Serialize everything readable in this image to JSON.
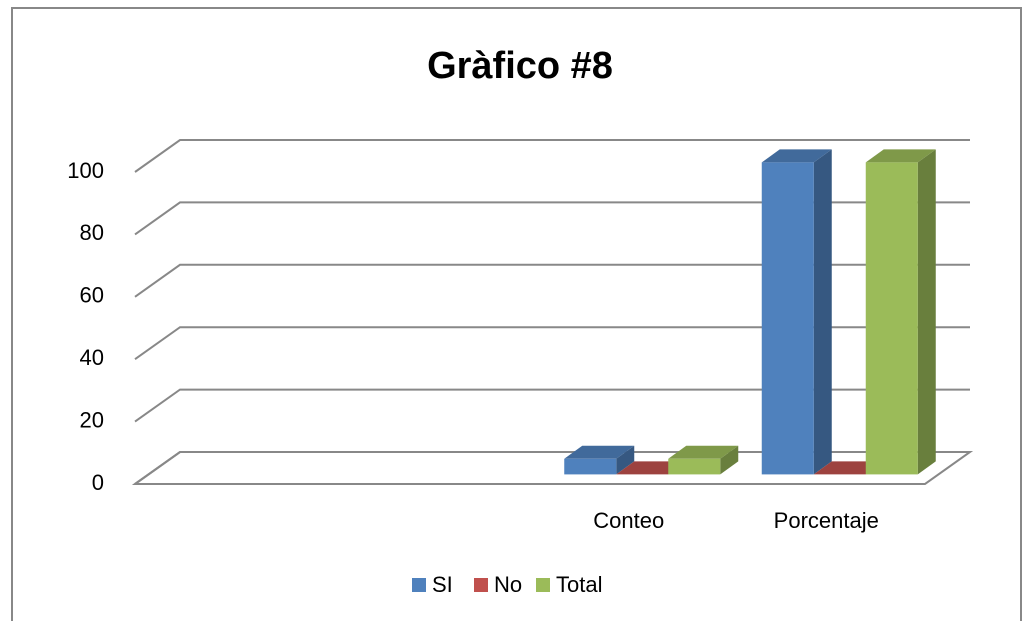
{
  "chart_data": {
    "type": "bar3d",
    "title": "Gràfico #8",
    "categories": [
      null,
      null,
      "Conteo",
      "Porcentaje"
    ],
    "series": [
      {
        "name": "SI",
        "color": "#4f81bd",
        "values": [
          null,
          null,
          5,
          100
        ]
      },
      {
        "name": "No",
        "color": "#c0504d",
        "values": [
          null,
          null,
          0,
          0
        ]
      },
      {
        "name": "Total",
        "color": "#9bbb59",
        "values": [
          null,
          null,
          5,
          100
        ]
      }
    ],
    "ylim": [
      0,
      100
    ],
    "yticks": [
      0,
      20,
      40,
      60,
      80,
      100
    ],
    "grid": true,
    "legend": "bottom"
  }
}
